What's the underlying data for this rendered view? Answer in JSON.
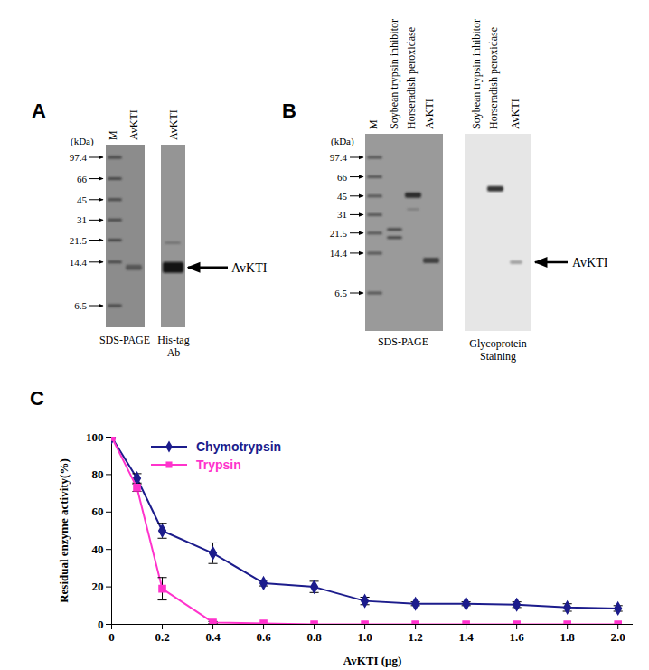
{
  "panel_A": {
    "label": "A",
    "markers": {
      "unit": "(kDa)",
      "values": [
        97.4,
        66,
        45,
        31,
        21.5,
        14.4,
        6.5
      ]
    },
    "gels": [
      {
        "lanes": [
          "M",
          "AvKTI"
        ],
        "caption": [
          "SDS-PAGE"
        ]
      },
      {
        "lanes": [
          "AvKTI"
        ],
        "caption": [
          "His-tag",
          "Ab"
        ]
      }
    ],
    "arrow_label": "AvKTI"
  },
  "panel_B": {
    "label": "B",
    "markers": {
      "unit": "(kDa)",
      "values": [
        97.4,
        66,
        45,
        31,
        21.5,
        14.4,
        6.5
      ]
    },
    "gels": [
      {
        "lanes": [
          "M",
          "Soybean trypsin inhibitor",
          "Horseradish peroxidase",
          "AvKTI"
        ],
        "caption": [
          "SDS-PAGE"
        ]
      },
      {
        "lanes": [
          "Soybean trypsin inhibitor",
          "Horseradish peroxidase",
          "AvKTI"
        ],
        "caption": [
          "Glycoprotein",
          "Staining"
        ]
      }
    ],
    "arrow_label": "AvKTI"
  },
  "chart_data": {
    "panel_label": "C",
    "type": "line",
    "x_label": "AvKTI (μg)",
    "y_label": "Residual enzyme activity(%)",
    "x": [
      0,
      0.1,
      0.2,
      0.4,
      0.6,
      0.8,
      1.0,
      1.2,
      1.4,
      1.6,
      1.8,
      2.0
    ],
    "series": [
      {
        "name": "Chymotrypsin",
        "color": "#1c1c8c",
        "marker": "diamond",
        "values": [
          100,
          78,
          50,
          38,
          22,
          20,
          12.5,
          11,
          11,
          10.5,
          9,
          8.5
        ],
        "errors": [
          0,
          2.5,
          4,
          5.5,
          1.5,
          3,
          2,
          1,
          1,
          1.5,
          2,
          1.5
        ]
      },
      {
        "name": "Trypsin",
        "color": "#ff33cc",
        "marker": "square",
        "values": [
          100,
          73,
          19,
          1,
          0.5,
          0,
          0,
          0,
          0,
          0,
          0,
          0
        ],
        "errors": [
          0,
          2,
          6,
          0.5,
          0,
          0,
          0,
          0,
          0,
          0,
          0,
          0
        ]
      }
    ],
    "xlim": [
      0,
      2.06
    ],
    "ylim": [
      0,
      100
    ],
    "xticks": [
      0,
      0.2,
      0.4,
      0.6,
      0.8,
      {
        "value": 1,
        "label": "1.0"
      },
      1.2,
      1.4,
      1.6,
      1.8,
      {
        "value": 2,
        "label": "2.0"
      }
    ],
    "yticks": [
      0,
      20,
      40,
      60,
      80,
      100
    ],
    "legend": "top-left",
    "grid": false
  }
}
